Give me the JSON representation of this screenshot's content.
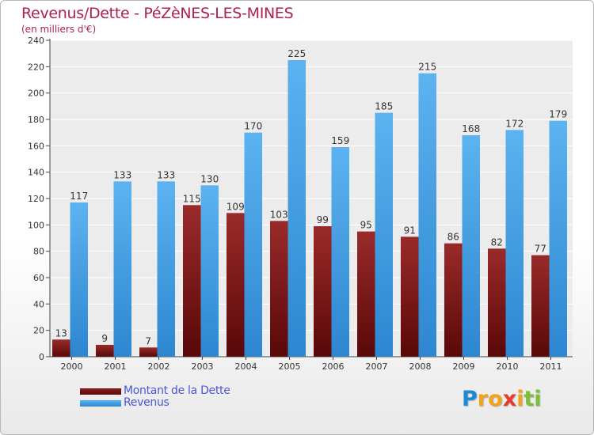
{
  "title": "Revenus/Dette - PéZèNES-LES-MINES",
  "subtitle": "(en milliers d'€)",
  "chart_data": {
    "type": "bar",
    "categories": [
      "2000",
      "2001",
      "2002",
      "2003",
      "2004",
      "2005",
      "2006",
      "2007",
      "2008",
      "2009",
      "2010",
      "2011"
    ],
    "series": [
      {
        "name": "Montant de la Dette",
        "color": "#7a1414",
        "values": [
          13,
          9,
          7,
          115,
          109,
          103,
          99,
          95,
          91,
          86,
          82,
          77
        ]
      },
      {
        "name": "Revenus",
        "color": "#4aa3e8",
        "values": [
          117,
          133,
          133,
          130,
          170,
          225,
          159,
          185,
          215,
          168,
          172,
          179
        ]
      }
    ],
    "ylim": [
      0,
      240
    ],
    "yticks": [
      0,
      20,
      40,
      60,
      80,
      100,
      120,
      140,
      160,
      180,
      200,
      220,
      240
    ],
    "grid": true,
    "legend_position": "bottom-left"
  },
  "logo": {
    "letters": [
      "P",
      "r",
      "o",
      "x",
      "i",
      "t",
      "i"
    ],
    "colors": [
      "#1e88d6",
      "#f2a31b",
      "#f2a31b",
      "#e83a2a",
      "#f2a31b",
      "#7bbf3a",
      "#7bbf3a"
    ]
  }
}
